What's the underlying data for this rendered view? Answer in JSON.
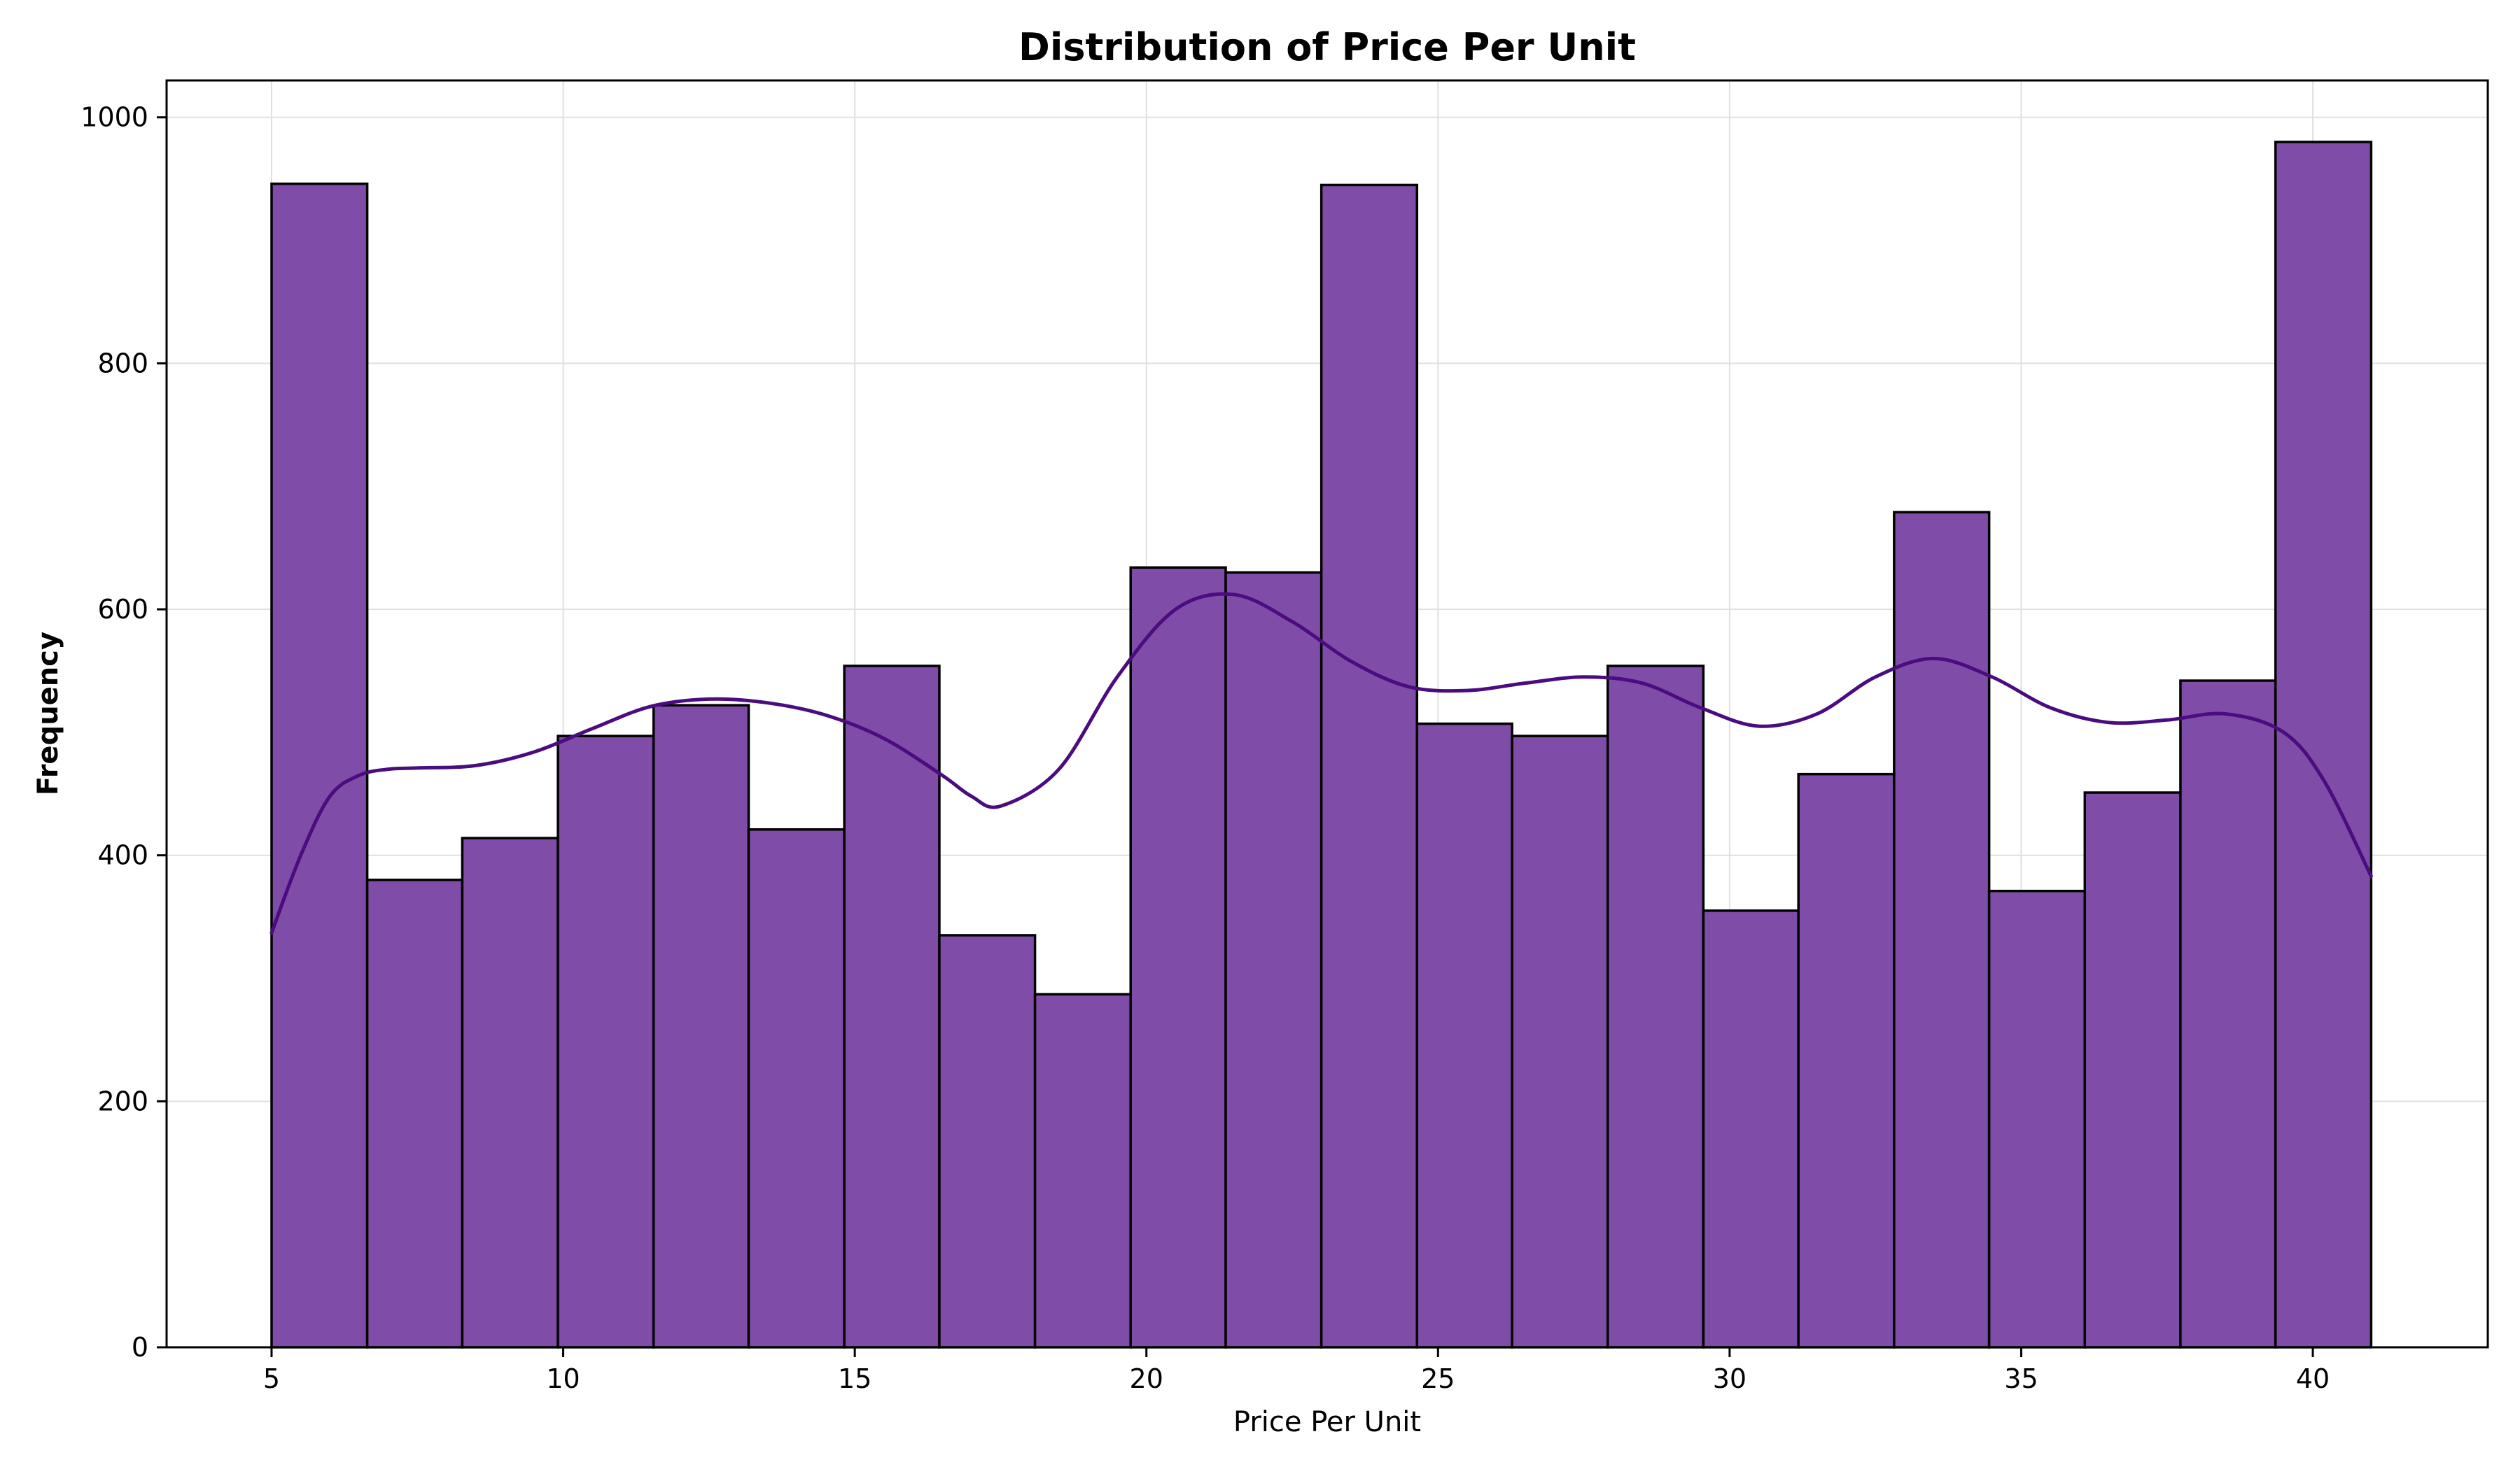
{
  "chart_data": {
    "type": "bar",
    "subtype": "histogram",
    "title": "Distribution of Price Per Unit",
    "xlabel": "Price Per Unit",
    "ylabel": "Frequency",
    "xlim": [
      3.2,
      43.0
    ],
    "ylim": [
      0,
      1030
    ],
    "xticks": [
      5,
      10,
      15,
      20,
      25,
      30,
      35,
      40
    ],
    "yticks": [
      0,
      200,
      400,
      600,
      800,
      1000
    ],
    "grid": true,
    "legend": "none",
    "bins": [
      {
        "start": 5.0,
        "end": 6.64,
        "count": 946
      },
      {
        "start": 6.64,
        "end": 8.27,
        "count": 380
      },
      {
        "start": 8.27,
        "end": 9.91,
        "count": 414
      },
      {
        "start": 9.91,
        "end": 11.55,
        "count": 497
      },
      {
        "start": 11.55,
        "end": 13.18,
        "count": 522
      },
      {
        "start": 13.18,
        "end": 14.82,
        "count": 421
      },
      {
        "start": 14.82,
        "end": 16.45,
        "count": 554
      },
      {
        "start": 16.45,
        "end": 18.09,
        "count": 335
      },
      {
        "start": 18.09,
        "end": 19.73,
        "count": 287
      },
      {
        "start": 19.73,
        "end": 21.36,
        "count": 634
      },
      {
        "start": 21.36,
        "end": 23.0,
        "count": 630
      },
      {
        "start": 23.0,
        "end": 24.64,
        "count": 945
      },
      {
        "start": 24.64,
        "end": 26.27,
        "count": 507
      },
      {
        "start": 26.27,
        "end": 27.91,
        "count": 497
      },
      {
        "start": 27.91,
        "end": 29.55,
        "count": 554
      },
      {
        "start": 29.55,
        "end": 31.18,
        "count": 355
      },
      {
        "start": 31.18,
        "end": 32.82,
        "count": 466
      },
      {
        "start": 32.82,
        "end": 34.45,
        "count": 679
      },
      {
        "start": 34.45,
        "end": 36.09,
        "count": 371
      },
      {
        "start": 36.09,
        "end": 37.73,
        "count": 451
      },
      {
        "start": 37.73,
        "end": 39.36,
        "count": 542
      },
      {
        "start": 39.36,
        "end": 41.0,
        "count": 980
      }
    ],
    "kde": {
      "x": [
        5.0,
        5.5,
        6.0,
        6.5,
        7.0,
        7.5,
        8.5,
        9.5,
        10.5,
        11.5,
        12.5,
        13.5,
        14.5,
        15.5,
        16.5,
        17.0,
        17.5,
        18.5,
        19.5,
        20.5,
        21.5,
        22.5,
        23.5,
        24.5,
        25.5,
        26.5,
        27.5,
        28.5,
        29.5,
        30.5,
        31.5,
        32.5,
        33.5,
        34.5,
        35.5,
        36.5,
        37.5,
        38.5,
        39.5,
        40.2,
        41.0
      ],
      "y": [
        337,
        400,
        448,
        465,
        470,
        471,
        473,
        484,
        503,
        521,
        527,
        524,
        514,
        495,
        465,
        448,
        440,
        470,
        545,
        600,
        612,
        590,
        558,
        537,
        534,
        540,
        545,
        540,
        520,
        505,
        515,
        545,
        560,
        545,
        520,
        508,
        510,
        515,
        500,
        460,
        383
      ]
    },
    "colors": {
      "bar_fill": "#7f4ca8",
      "bar_edge": "#000000",
      "kde_line": "#4b0c7f",
      "grid": "#e0e0e0"
    }
  }
}
